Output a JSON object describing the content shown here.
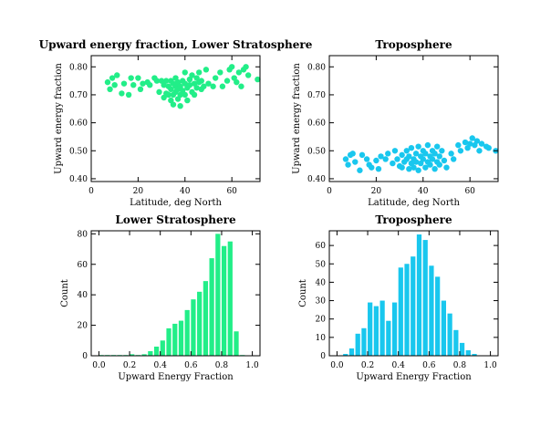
{
  "colors": {
    "green": "#22ee88",
    "cyan": "#19c7ee",
    "axis": "#000000"
  },
  "chart_data": [
    {
      "id": "p1",
      "type": "scatter",
      "title": "Upward energy fraction, Lower Stratosphere",
      "xlabel": "Latitude,  deg North",
      "ylabel": "Upward energy fraction",
      "xlim": [
        0,
        72
      ],
      "ylim": [
        0.39,
        0.84
      ],
      "xticks": [
        0,
        20,
        40,
        60
      ],
      "xtick_labels": [
        "0",
        "20",
        "40",
        "60"
      ],
      "yticks": [
        0.4,
        0.5,
        0.6,
        0.7,
        0.8
      ],
      "ytick_labels": [
        "0.40",
        "0.50",
        "0.60",
        "0.70",
        "0.80"
      ],
      "color_key": "green",
      "points": [
        [
          7,
          0.745
        ],
        [
          8,
          0.72
        ],
        [
          9,
          0.76
        ],
        [
          10,
          0.735
        ],
        [
          11,
          0.77
        ],
        [
          13,
          0.705
        ],
        [
          14,
          0.74
        ],
        [
          16,
          0.7
        ],
        [
          17,
          0.76
        ],
        [
          18,
          0.735
        ],
        [
          20,
          0.76
        ],
        [
          21,
          0.72
        ],
        [
          22,
          0.74
        ],
        [
          24,
          0.745
        ],
        [
          25,
          0.735
        ],
        [
          27,
          0.76
        ],
        [
          28,
          0.75
        ],
        [
          29,
          0.71
        ],
        [
          30,
          0.75
        ],
        [
          31,
          0.735
        ],
        [
          31,
          0.69
        ],
        [
          32,
          0.705
        ],
        [
          32,
          0.75
        ],
        [
          33,
          0.7
        ],
        [
          33,
          0.73
        ],
        [
          34,
          0.68
        ],
        [
          34,
          0.75
        ],
        [
          34,
          0.72
        ],
        [
          35,
          0.7
        ],
        [
          35,
          0.665
        ],
        [
          35,
          0.74
        ],
        [
          36,
          0.73
        ],
        [
          36,
          0.71
        ],
        [
          36,
          0.76
        ],
        [
          37,
          0.685
        ],
        [
          37,
          0.72
        ],
        [
          37,
          0.745
        ],
        [
          38,
          0.73
        ],
        [
          38,
          0.7
        ],
        [
          38,
          0.66
        ],
        [
          39,
          0.75
        ],
        [
          39,
          0.715
        ],
        [
          40,
          0.74
        ],
        [
          40,
          0.78
        ],
        [
          40,
          0.7
        ],
        [
          41,
          0.725
        ],
        [
          41,
          0.68
        ],
        [
          42,
          0.755
        ],
        [
          42,
          0.735
        ],
        [
          43,
          0.71
        ],
        [
          43,
          0.77
        ],
        [
          44,
          0.74
        ],
        [
          44,
          0.7
        ],
        [
          45,
          0.76
        ],
        [
          45,
          0.725
        ],
        [
          46,
          0.745
        ],
        [
          46,
          0.78
        ],
        [
          47,
          0.72
        ],
        [
          47,
          0.75
        ],
        [
          48,
          0.73
        ],
        [
          49,
          0.79
        ],
        [
          50,
          0.74
        ],
        [
          52,
          0.73
        ],
        [
          53,
          0.76
        ],
        [
          55,
          0.78
        ],
        [
          56,
          0.73
        ],
        [
          58,
          0.75
        ],
        [
          59,
          0.79
        ],
        [
          60,
          0.8
        ],
        [
          61,
          0.76
        ],
        [
          62,
          0.745
        ],
        [
          63,
          0.78
        ],
        [
          64,
          0.73
        ],
        [
          65,
          0.79
        ],
        [
          66,
          0.8
        ],
        [
          67,
          0.77
        ],
        [
          71,
          0.755
        ]
      ]
    },
    {
      "id": "p2",
      "type": "scatter",
      "title": "Troposphere",
      "xlabel": "Latitude,  deg North",
      "ylabel": "Upward energy fraction",
      "xlim": [
        0,
        72
      ],
      "ylim": [
        0.39,
        0.84
      ],
      "xticks": [
        0,
        20,
        40,
        60
      ],
      "xtick_labels": [
        "0",
        "20",
        "40",
        "60"
      ],
      "yticks": [
        0.4,
        0.5,
        0.6,
        0.7,
        0.8
      ],
      "ytick_labels": [
        "0.40",
        "0.50",
        "0.60",
        "0.70",
        "0.80"
      ],
      "color_key": "cyan",
      "points": [
        [
          7,
          0.47
        ],
        [
          8,
          0.45
        ],
        [
          9,
          0.485
        ],
        [
          10,
          0.49
        ],
        [
          11,
          0.46
        ],
        [
          13,
          0.43
        ],
        [
          14,
          0.485
        ],
        [
          16,
          0.47
        ],
        [
          17,
          0.45
        ],
        [
          18,
          0.44
        ],
        [
          20,
          0.465
        ],
        [
          21,
          0.435
        ],
        [
          22,
          0.48
        ],
        [
          24,
          0.47
        ],
        [
          25,
          0.49
        ],
        [
          27,
          0.455
        ],
        [
          28,
          0.5
        ],
        [
          29,
          0.47
        ],
        [
          30,
          0.445
        ],
        [
          31,
          0.485
        ],
        [
          31,
          0.44
        ],
        [
          32,
          0.46
        ],
        [
          33,
          0.5
        ],
        [
          33,
          0.47
        ],
        [
          34,
          0.435
        ],
        [
          34,
          0.48
        ],
        [
          35,
          0.455
        ],
        [
          35,
          0.51
        ],
        [
          36,
          0.47
        ],
        [
          36,
          0.44
        ],
        [
          37,
          0.49
        ],
        [
          37,
          0.46
        ],
        [
          38,
          0.515
        ],
        [
          38,
          0.43
        ],
        [
          39,
          0.48
        ],
        [
          39,
          0.455
        ],
        [
          40,
          0.5
        ],
        [
          40,
          0.47
        ],
        [
          41,
          0.44
        ],
        [
          41,
          0.49
        ],
        [
          42,
          0.46
        ],
        [
          42,
          0.52
        ],
        [
          43,
          0.48
        ],
        [
          43,
          0.45
        ],
        [
          44,
          0.5
        ],
        [
          44,
          0.47
        ],
        [
          45,
          0.435
        ],
        [
          45,
          0.49
        ],
        [
          46,
          0.46
        ],
        [
          46,
          0.515
        ],
        [
          47,
          0.48
        ],
        [
          47,
          0.45
        ],
        [
          48,
          0.5
        ],
        [
          49,
          0.465
        ],
        [
          50,
          0.44
        ],
        [
          52,
          0.49
        ],
        [
          53,
          0.47
        ],
        [
          55,
          0.52
        ],
        [
          56,
          0.5
        ],
        [
          58,
          0.53
        ],
        [
          59,
          0.51
        ],
        [
          60,
          0.525
        ],
        [
          61,
          0.545
        ],
        [
          62,
          0.52
        ],
        [
          63,
          0.535
        ],
        [
          64,
          0.5
        ],
        [
          65,
          0.525
        ],
        [
          67,
          0.515
        ],
        [
          68,
          0.51
        ],
        [
          71,
          0.5
        ]
      ]
    },
    {
      "id": "p3",
      "type": "bar",
      "title": "Lower Stratosphere",
      "xlabel": "Upward Energy Fraction",
      "ylabel": "Count",
      "xlim": [
        -0.05,
        1.05
      ],
      "ylim": [
        0,
        82
      ],
      "bin_width": 0.04,
      "xticks": [
        0.0,
        0.2,
        0.4,
        0.6,
        0.8,
        1.0
      ],
      "xtick_labels": [
        "0.0",
        "0.2",
        "0.4",
        "0.6",
        "0.8",
        "1.0"
      ],
      "yticks": [
        0,
        20,
        40,
        60,
        80
      ],
      "ytick_labels": [
        "0",
        "20",
        "40",
        "60",
        "80"
      ],
      "color_key": "green",
      "bins": [
        0.02,
        0.06,
        0.1,
        0.14,
        0.18,
        0.22,
        0.26,
        0.3,
        0.34,
        0.38,
        0.42,
        0.46,
        0.5,
        0.54,
        0.58,
        0.62,
        0.66,
        0.7,
        0.74,
        0.78,
        0.82,
        0.86,
        0.9,
        0.94
      ],
      "values": [
        0,
        0,
        0,
        0,
        0,
        1,
        0,
        1,
        3,
        6,
        10,
        18,
        21,
        23,
        30,
        37,
        42,
        49,
        64,
        80,
        72,
        75,
        16,
        0
      ]
    },
    {
      "id": "p4",
      "type": "bar",
      "title": "Troposphere",
      "xlabel": "Upward Energy Fraction",
      "ylabel": "Count",
      "xlim": [
        -0.05,
        1.05
      ],
      "ylim": [
        0,
        68
      ],
      "bin_width": 0.04,
      "xticks": [
        0.0,
        0.2,
        0.4,
        0.6,
        0.8,
        1.0
      ],
      "xtick_labels": [
        "0.0",
        "0.2",
        "0.4",
        "0.6",
        "0.8",
        "1.0"
      ],
      "yticks": [
        0,
        10,
        20,
        30,
        40,
        50,
        60
      ],
      "ytick_labels": [
        "0",
        "10",
        "20",
        "30",
        "40",
        "50",
        "60"
      ],
      "color_key": "cyan",
      "bins": [
        0.06,
        0.1,
        0.14,
        0.18,
        0.22,
        0.26,
        0.3,
        0.34,
        0.38,
        0.42,
        0.46,
        0.5,
        0.54,
        0.58,
        0.62,
        0.66,
        0.7,
        0.74,
        0.78,
        0.82,
        0.86,
        0.9
      ],
      "values": [
        1,
        4,
        12,
        15,
        29,
        27,
        30,
        19,
        29,
        48,
        50,
        54,
        66,
        63,
        49,
        43,
        30,
        23,
        14,
        7,
        3,
        1
      ]
    }
  ]
}
